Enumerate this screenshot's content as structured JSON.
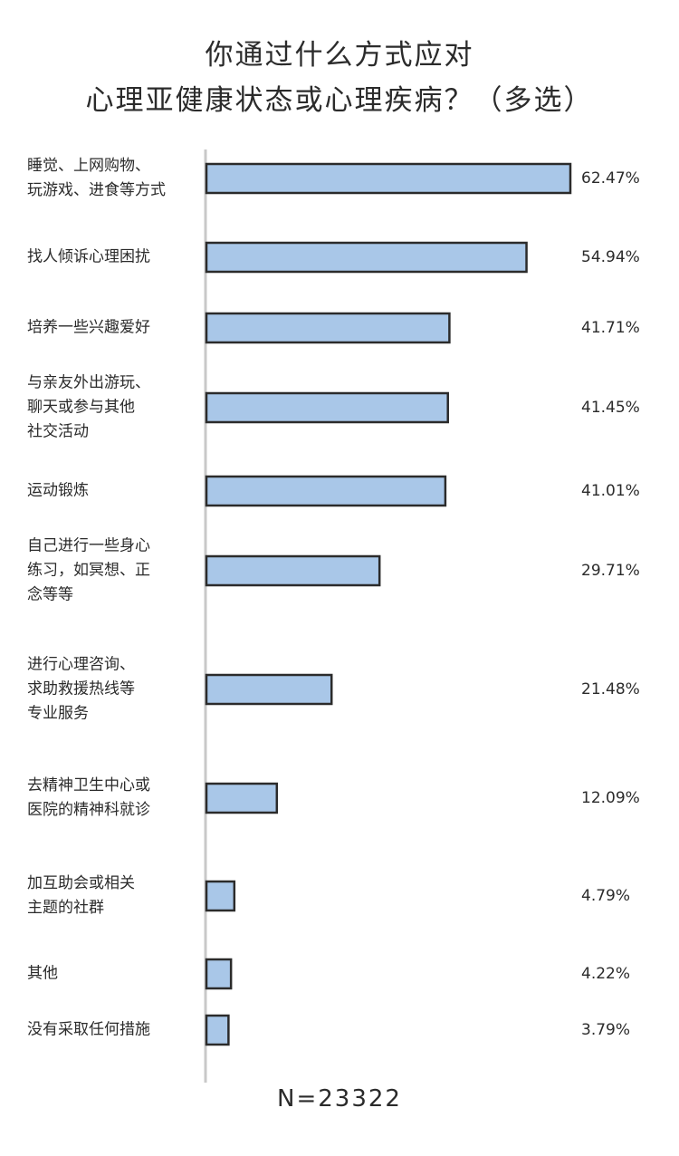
{
  "chart_data": {
    "type": "bar",
    "orientation": "horizontal",
    "title": "你通过什么方式应对\n心理亚健康状态或心理疾病？（多选）",
    "categories": [
      "睡觉、上网购物、\n玩游戏、进食等方式",
      "找人倾诉心理困扰",
      "培养一些兴趣爱好",
      "与亲友外出游玩、\n聊天或参与其他\n社交活动",
      "运动锻炼",
      "自己进行一些身心\n练习，如冥想、正\n念等等",
      "进行心理咨询、\n求助救援热线等\n专业服务",
      "去精神卫生中心或\n医院的精神科就诊",
      "加互助会或相关\n主题的社群",
      "其他",
      "没有采取任何措施"
    ],
    "values": [
      62.47,
      54.94,
      41.71,
      41.45,
      41.01,
      29.71,
      21.48,
      12.09,
      4.79,
      4.22,
      3.79
    ],
    "value_labels": [
      "62.47%",
      "54.94%",
      "41.71%",
      "41.45%",
      "41.01%",
      "29.71%",
      "21.48%",
      "12.09%",
      "4.79%",
      "4.22%",
      "3.79%"
    ],
    "color": "#a9c7e8",
    "note": "N=23322"
  }
}
